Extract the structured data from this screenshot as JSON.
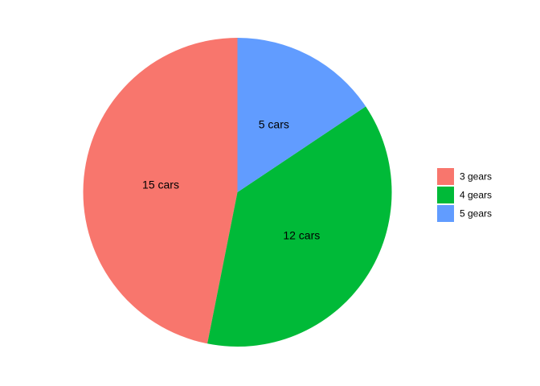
{
  "chart_data": {
    "type": "pie",
    "categories": [
      "3 gears",
      "4 gears",
      "5 gears"
    ],
    "values": [
      15,
      12,
      5
    ],
    "labels": [
      "15 cars",
      "12 cars",
      "5 cars"
    ],
    "colors": [
      "#F8766D",
      "#00BA38",
      "#619CFF"
    ],
    "legend_position": "right",
    "title": "",
    "xlabel": "",
    "ylabel": ""
  }
}
